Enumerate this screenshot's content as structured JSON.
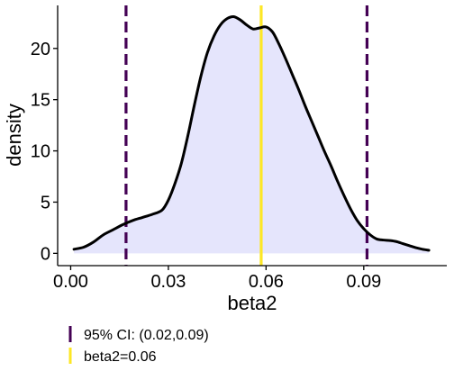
{
  "chart_data": {
    "type": "area",
    "xlabel": "beta2",
    "ylabel": "density",
    "xlim": [
      -0.004,
      0.1155
    ],
    "ylim": [
      -1.2,
      24.2
    ],
    "x_ticks": [
      0.0,
      0.03,
      0.06,
      0.09
    ],
    "x_tick_labels": [
      "0.00",
      "0.03",
      "0.06",
      "0.09"
    ],
    "y_ticks": [
      0,
      5,
      10,
      15,
      20
    ],
    "y_tick_labels": [
      "0",
      "5",
      "10",
      "15",
      "20"
    ],
    "grid": false,
    "density": {
      "x": [
        0.001,
        0.004,
        0.007,
        0.01,
        0.013,
        0.016,
        0.019,
        0.022,
        0.025,
        0.028,
        0.03,
        0.032,
        0.034,
        0.036,
        0.038,
        0.04,
        0.042,
        0.044,
        0.046,
        0.048,
        0.05,
        0.052,
        0.054,
        0.056,
        0.058,
        0.06,
        0.062,
        0.064,
        0.066,
        0.068,
        0.07,
        0.072,
        0.074,
        0.076,
        0.078,
        0.08,
        0.082,
        0.084,
        0.086,
        0.088,
        0.09,
        0.092,
        0.094,
        0.096,
        0.098,
        0.1,
        0.102,
        0.104,
        0.106,
        0.108,
        0.11
      ],
      "y": [
        0.4,
        0.6,
        1.1,
        1.8,
        2.3,
        2.8,
        3.2,
        3.5,
        3.8,
        4.2,
        5.2,
        6.8,
        8.8,
        11.5,
        14.5,
        17.3,
        19.6,
        21.2,
        22.3,
        22.9,
        23.1,
        22.8,
        22.3,
        21.9,
        22.0,
        22.1,
        21.6,
        20.4,
        19.0,
        17.5,
        16.0,
        14.4,
        12.9,
        11.4,
        9.9,
        8.5,
        7.0,
        5.6,
        4.3,
        3.2,
        2.4,
        1.8,
        1.4,
        1.3,
        1.25,
        1.15,
        0.95,
        0.75,
        0.55,
        0.4,
        0.3
      ]
    },
    "ci_lower": 0.017,
    "ci_upper": 0.091,
    "point_estimate": 0.0585,
    "colors": {
      "fill": "#e5e5fc",
      "curve": "#000000",
      "ci_line": "#440154",
      "estimate_line": "#fde725"
    },
    "legend": {
      "placement": "bottom-left",
      "entries": [
        {
          "label": "95% CI: (0.02,0.09)",
          "color": "#440154"
        },
        {
          "label": "beta2=0.06",
          "color": "#fde725"
        }
      ]
    }
  }
}
